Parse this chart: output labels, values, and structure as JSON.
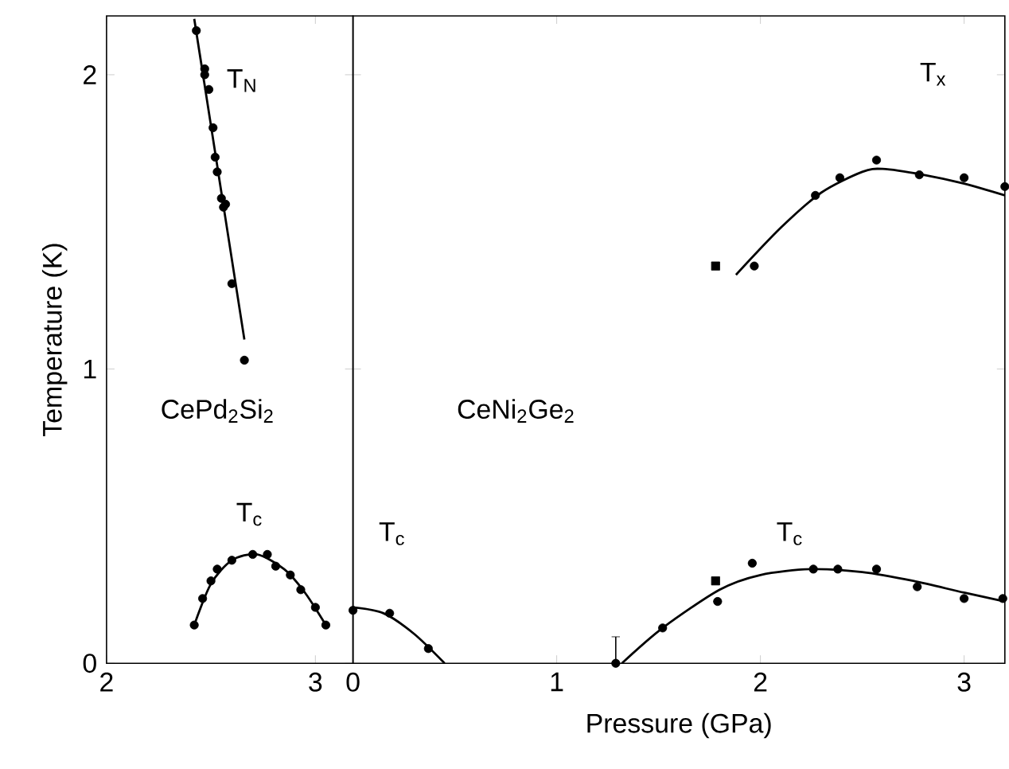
{
  "chart_data": [
    {
      "type": "scatter",
      "ylabel": "Temperature (K)",
      "xlim": [
        2,
        3.18
      ],
      "ylim": [
        0,
        2.2
      ],
      "xticks": [
        2,
        3
      ],
      "yticks": [
        0,
        1,
        2
      ],
      "annotations": [
        "T$_{N}$",
        "CePd$_{2}$Si$_{2}$",
        "T$_{c}$"
      ],
      "series": [
        {
          "marker": "circle",
          "color": "#000000",
          "x": [
            2.43,
            2.47,
            2.47,
            2.49,
            2.51,
            2.52,
            2.53,
            2.55,
            2.56,
            2.57,
            2.6,
            2.66
          ],
          "values": [
            2.15,
            2.02,
            2.0,
            1.95,
            1.82,
            1.72,
            1.67,
            1.58,
            1.55,
            1.56,
            1.29,
            1.03
          ]
        },
        {
          "type": "line",
          "marker": "none",
          "color": "#000000",
          "x": [
            2.42,
            2.66
          ],
          "values": [
            2.19,
            1.1
          ]
        },
        {
          "marker": "circle",
          "color": "#000000",
          "x": [
            2.42,
            2.46,
            2.5,
            2.53,
            2.6,
            2.7,
            2.77,
            2.81,
            2.88,
            2.93,
            3.0,
            3.05
          ],
          "values": [
            0.13,
            0.22,
            0.28,
            0.32,
            0.35,
            0.37,
            0.37,
            0.33,
            0.3,
            0.25,
            0.19,
            0.13
          ]
        },
        {
          "type": "line",
          "marker": "none",
          "color": "#000000",
          "x": [
            2.42,
            2.5,
            2.6,
            2.72,
            2.85,
            2.95,
            3.05
          ],
          "values": [
            0.13,
            0.27,
            0.35,
            0.37,
            0.32,
            0.24,
            0.13
          ]
        }
      ]
    },
    {
      "type": "scatter",
      "xlabel": "Pressure (GPa)",
      "xlim": [
        0,
        3.2
      ],
      "ylim": [
        0,
        2.2
      ],
      "xticks": [
        0,
        1,
        2,
        3
      ],
      "yticks": [
        0,
        1,
        2
      ],
      "tick_labels": "x",
      "annotations": [
        "T$_{c}$",
        "CeNi$_{2}$Ge$_{2}$",
        "T$_{c}$",
        "T$_{x}$"
      ],
      "series": [
        {
          "marker": "circle",
          "color": "#000000",
          "x": [
            0.0,
            0.18,
            0.37
          ],
          "values": [
            0.18,
            0.17,
            0.05
          ]
        },
        {
          "type": "line",
          "marker": "none",
          "color": "#000000",
          "x": [
            0.0,
            0.15,
            0.3,
            0.45
          ],
          "values": [
            0.19,
            0.17,
            0.1,
            0.0
          ]
        },
        {
          "marker": "circle",
          "color": "#000000",
          "x": [
            1.29,
            1.52,
            1.79,
            1.96,
            2.26,
            2.38,
            2.57,
            2.77,
            3.0,
            3.19
          ],
          "values": [
            0.0,
            0.12,
            0.21,
            0.34,
            0.32,
            0.32,
            0.32,
            0.26,
            0.22,
            0.22
          ],
          "errors": [
            [
              0,
              0.09
            ],
            null,
            null,
            null,
            null,
            null,
            null,
            null,
            null,
            null
          ]
        },
        {
          "marker": "square",
          "color": "#000000",
          "x": [
            1.78
          ],
          "values": [
            0.28
          ]
        },
        {
          "type": "line",
          "marker": "none",
          "color": "#000000",
          "x": [
            1.32,
            1.52,
            1.8,
            2.0,
            2.25,
            2.5,
            2.75,
            3.0,
            3.2
          ],
          "values": [
            0.0,
            0.12,
            0.25,
            0.3,
            0.32,
            0.31,
            0.28,
            0.24,
            0.21
          ]
        },
        {
          "marker": "square",
          "color": "#000000",
          "x": [
            1.78
          ],
          "values": [
            1.35
          ]
        },
        {
          "marker": "circle",
          "color": "#000000",
          "x": [
            1.97,
            2.27,
            2.39,
            2.57,
            2.78,
            3.0,
            3.2
          ],
          "values": [
            1.35,
            1.59,
            1.65,
            1.71,
            1.66,
            1.65,
            1.62
          ]
        },
        {
          "type": "line",
          "marker": "none",
          "color": "#000000",
          "x": [
            1.88,
            2.1,
            2.3,
            2.5,
            2.6,
            2.8,
            3.0,
            3.2
          ],
          "values": [
            1.32,
            1.48,
            1.6,
            1.67,
            1.68,
            1.66,
            1.63,
            1.59
          ]
        }
      ]
    }
  ]
}
